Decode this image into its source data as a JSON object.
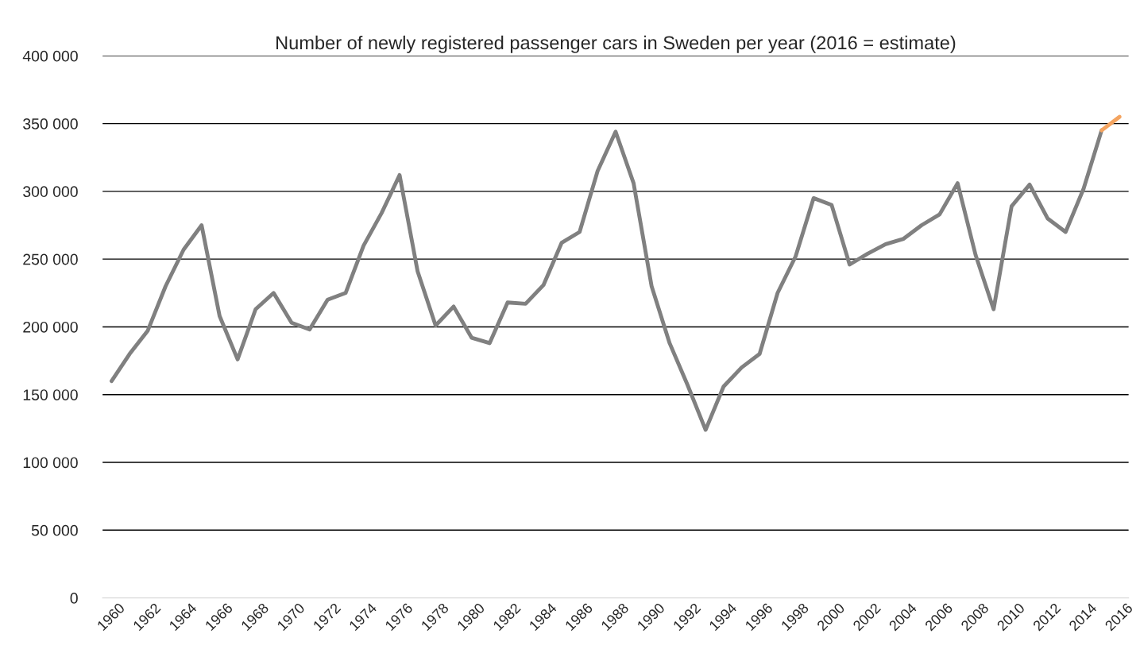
{
  "chart_data": {
    "type": "line",
    "title": "Number of newly registered passenger cars in Sweden per year (2016 = estimate)",
    "categories": [
      "1960",
      null,
      "1962",
      null,
      "1964",
      null,
      "1966",
      null,
      "1968",
      null,
      "1970",
      null,
      "1972",
      null,
      "1974",
      null,
      "1976",
      null,
      "1978",
      null,
      "1980",
      null,
      "1982",
      null,
      "1984",
      null,
      "1986",
      null,
      "1988",
      null,
      "1990",
      null,
      "1992",
      null,
      "1994",
      null,
      "1996",
      null,
      "1998",
      null,
      "2000",
      null,
      "2002",
      null,
      "2004",
      null,
      "2006",
      null,
      "2008",
      null,
      "2010",
      null,
      "2012",
      null,
      "2014",
      null,
      "2016"
    ],
    "series": [
      {
        "color": "#808080",
        "values": [
          160000,
          180000,
          197000,
          230000,
          257000,
          275000,
          208000,
          176000,
          213000,
          225000,
          203000,
          198000,
          220000,
          225000,
          260000,
          284000,
          312000,
          241000,
          201000,
          215000,
          192000,
          188000,
          218000,
          217000,
          231000,
          262000,
          270000,
          315000,
          344000,
          306000,
          230000,
          188000,
          157000,
          124000,
          156000,
          170000,
          180000,
          225000,
          252000,
          295000,
          290000,
          246000,
          254000,
          261000,
          265000,
          275000,
          283000,
          306000,
          253000,
          213000,
          289000,
          305000,
          280000,
          270000,
          302000,
          345000,
          null
        ]
      },
      {
        "color": "#f4a460",
        "values": [
          null,
          null,
          null,
          null,
          null,
          null,
          null,
          null,
          null,
          null,
          null,
          null,
          null,
          null,
          null,
          null,
          null,
          null,
          null,
          null,
          null,
          null,
          null,
          null,
          null,
          null,
          null,
          null,
          null,
          null,
          null,
          null,
          null,
          null,
          null,
          null,
          null,
          null,
          null,
          null,
          null,
          null,
          null,
          null,
          null,
          null,
          null,
          null,
          null,
          null,
          null,
          null,
          null,
          null,
          null,
          345000,
          355000
        ]
      }
    ],
    "ylim": [
      0,
      400000
    ],
    "yticks": [
      0,
      {
        "value": 50000,
        "label": "50 000"
      },
      {
        "value": 100000,
        "label": "100 000"
      },
      {
        "value": 150000,
        "label": "150 000"
      },
      {
        "value": 200000,
        "label": "200 000"
      },
      {
        "value": 250000,
        "label": "250 000"
      },
      {
        "value": 300000,
        "label": "300 000"
      },
      {
        "value": 350000,
        "label": "350 000"
      },
      {
        "value": 400000,
        "label": "400 000"
      }
    ],
    "grid": "y",
    "marker": "none",
    "line_style": "solid"
  }
}
